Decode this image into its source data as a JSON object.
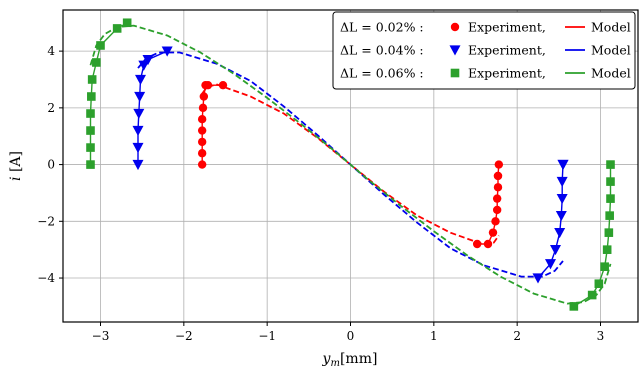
{
  "chart_data": {
    "type": "line",
    "title": "",
    "xlabel_var": "y",
    "xlabel_sub": "m",
    "xlabel_unit": "[mm]",
    "ylabel_var": "i",
    "ylabel_unit": " [A]",
    "xlim": [
      -3.45,
      3.45
    ],
    "ylim": [
      -5.55,
      5.45
    ],
    "xticks": [
      -3,
      -2,
      -1,
      0,
      1,
      2,
      3
    ],
    "yticks": [
      -4,
      -2,
      0,
      2,
      4
    ],
    "xtick_labels": [
      "−3",
      "−2",
      "−1",
      "0",
      "1",
      "2",
      "3"
    ],
    "ytick_labels": [
      "−4",
      "−2",
      "0",
      "2",
      "4"
    ],
    "grid": true,
    "legend_position": "top-right",
    "series": [
      {
        "legend_label": "ΔL = 0.02% :",
        "experiment_label": "Experiment,",
        "model_label": "Model",
        "color": "#ff0000",
        "marker": "circle",
        "experiment": {
          "x": [
            -1.78,
            -1.78,
            -1.78,
            -1.78,
            -1.78,
            -1.77,
            -1.76,
            -1.74,
            -1.71,
            -1.53,
            1.52,
            1.65,
            1.71,
            1.74,
            1.76,
            1.76,
            1.77,
            1.77,
            1.77,
            1.78
          ],
          "y": [
            0,
            0.4,
            0.8,
            1.2,
            1.6,
            2.0,
            2.4,
            2.8,
            2.8,
            2.8,
            -2.8,
            -2.8,
            -2.4,
            -2.0,
            -1.6,
            -1.2,
            -0.8,
            -0.4,
            -0.4,
            0
          ]
        },
        "model": {
          "x": [
            -1.78,
            -1.72,
            -1.6,
            -1.2,
            -0.8,
            -0.4,
            0,
            0.4,
            0.8,
            1.2,
            1.6,
            1.72,
            1.78
          ],
          "y": [
            2.5,
            2.75,
            2.82,
            2.4,
            1.8,
            0.95,
            0,
            -0.95,
            -1.8,
            -2.4,
            -2.82,
            -2.75,
            -2.5
          ]
        }
      },
      {
        "legend_label": "ΔL = 0.04% :",
        "experiment_label": "Experiment,",
        "model_label": "Model",
        "color": "#0000ee",
        "marker": "triangle",
        "experiment": {
          "x": [
            -2.55,
            -2.55,
            -2.55,
            -2.54,
            -2.53,
            -2.52,
            -2.48,
            -2.43,
            -2.2,
            2.25,
            2.4,
            2.46,
            2.51,
            2.53,
            2.54,
            2.54,
            2.55,
            2.55
          ],
          "y": [
            0,
            0.6,
            1.2,
            1.8,
            2.4,
            3.0,
            3.5,
            3.7,
            4.0,
            -4.0,
            -3.5,
            -3.0,
            -2.4,
            -1.8,
            -1.2,
            -0.6,
            0,
            0
          ]
        },
        "model": {
          "x": [
            -2.55,
            -2.45,
            -2.3,
            -2.05,
            -1.6,
            -1.2,
            -0.8,
            -0.4,
            0,
            0.4,
            0.8,
            1.2,
            1.6,
            2.05,
            2.3,
            2.45,
            2.55
          ],
          "y": [
            3.4,
            3.75,
            3.95,
            3.95,
            3.55,
            2.95,
            2.05,
            1.05,
            0,
            -1.05,
            -2.05,
            -2.95,
            -3.55,
            -3.95,
            -3.95,
            -3.75,
            -3.4
          ]
        }
      },
      {
        "legend_label": "ΔL = 0.06% :",
        "experiment_label": "Experiment,",
        "model_label": "Model",
        "color": "#2ca02c",
        "marker": "square",
        "experiment": {
          "x": [
            -3.12,
            -3.12,
            -3.12,
            -3.12,
            -3.11,
            -3.1,
            -3.05,
            -3.0,
            -2.8,
            -2.68,
            2.68,
            2.9,
            2.98,
            3.05,
            3.08,
            3.1,
            3.11,
            3.12,
            3.12,
            3.12
          ],
          "y": [
            0,
            0.6,
            1.2,
            1.8,
            2.4,
            3.0,
            3.6,
            4.2,
            4.8,
            5.0,
            -5.0,
            -4.6,
            -4.2,
            -3.6,
            -3.0,
            -2.4,
            -1.8,
            -1.2,
            -0.6,
            0
          ]
        },
        "model": {
          "x": [
            -3.12,
            -3.05,
            -2.95,
            -2.8,
            -2.6,
            -2.2,
            -1.8,
            -1.4,
            -1.0,
            -0.6,
            -0.2,
            0,
            0.2,
            0.6,
            1.0,
            1.4,
            1.8,
            2.2,
            2.6,
            2.8,
            2.95,
            3.05,
            3.12
          ],
          "y": [
            3.5,
            4.2,
            4.6,
            4.85,
            4.9,
            4.55,
            3.95,
            3.2,
            2.35,
            1.45,
            0.5,
            0,
            -0.5,
            -1.45,
            -2.35,
            -3.2,
            -3.95,
            -4.55,
            -4.9,
            -4.85,
            -4.6,
            -4.2,
            -3.5
          ]
        }
      }
    ]
  }
}
